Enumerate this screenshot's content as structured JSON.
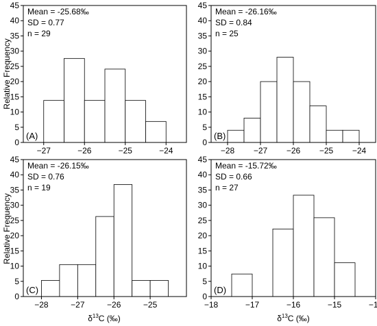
{
  "figure": {
    "ylabel": "Relative Frequency",
    "xlabel_prefix": "δ",
    "xlabel_sup": "13",
    "xlabel_suffix": "C (‰)"
  },
  "chart_data": [
    {
      "type": "bar",
      "panel": "(A)",
      "stats": [
        "Mean = -25.68‰",
        "SD = 0.77",
        "n = 29"
      ],
      "xlim": [
        -27.5,
        -23.5
      ],
      "xticks": [
        -27,
        -26,
        -25,
        -24
      ],
      "ylim": [
        0,
        45
      ],
      "yticks": [
        0,
        5,
        10,
        15,
        20,
        25,
        30,
        35,
        40,
        45
      ],
      "bin_width": 0.5,
      "bins": [
        {
          "start": -27.0,
          "value": 13.8
        },
        {
          "start": -26.5,
          "value": 27.6
        },
        {
          "start": -26.0,
          "value": 13.8
        },
        {
          "start": -25.5,
          "value": 24.1
        },
        {
          "start": -25.0,
          "value": 13.8
        },
        {
          "start": -24.5,
          "value": 6.9
        }
      ]
    },
    {
      "type": "bar",
      "panel": "(B)",
      "stats": [
        "Mean = -26.16‰",
        "SD = 0.84",
        "n = 25"
      ],
      "xlim": [
        -28.5,
        -23.5
      ],
      "xticks": [
        -28,
        -27,
        -26,
        -25,
        -24
      ],
      "ylim": [
        0,
        45
      ],
      "yticks": [
        0,
        5,
        10,
        15,
        20,
        25,
        30,
        35,
        40,
        45
      ],
      "bin_width": 0.5,
      "bins": [
        {
          "start": -28.0,
          "value": 4
        },
        {
          "start": -27.5,
          "value": 8
        },
        {
          "start": -27.0,
          "value": 20
        },
        {
          "start": -26.5,
          "value": 28
        },
        {
          "start": -26.0,
          "value": 20
        },
        {
          "start": -25.5,
          "value": 12
        },
        {
          "start": -25.0,
          "value": 4
        },
        {
          "start": -24.5,
          "value": 4
        }
      ]
    },
    {
      "type": "bar",
      "panel": "(C)",
      "stats": [
        "Mean = -26.15‰",
        "SD = 0.76",
        "n = 19"
      ],
      "xlim": [
        -28.5,
        -24
      ],
      "xticks": [
        -28,
        -27,
        -26,
        -25
      ],
      "ylim": [
        0,
        45
      ],
      "yticks": [
        0,
        5,
        10,
        15,
        20,
        25,
        30,
        35,
        40,
        45
      ],
      "bin_width": 0.5,
      "bins": [
        {
          "start": -28.0,
          "value": 5.3
        },
        {
          "start": -27.5,
          "value": 10.5
        },
        {
          "start": -27.0,
          "value": 10.5
        },
        {
          "start": -26.5,
          "value": 26.3
        },
        {
          "start": -26.0,
          "value": 36.8
        },
        {
          "start": -25.5,
          "value": 5.3
        },
        {
          "start": -25.0,
          "value": 5.3
        }
      ]
    },
    {
      "type": "bar",
      "panel": "(D)",
      "stats": [
        "Mean = -15.72‰",
        "SD = 0.66",
        "n = 27"
      ],
      "xlim": [
        -18,
        -14
      ],
      "xticks": [
        -18,
        -17,
        -16,
        -15,
        -14
      ],
      "ylim": [
        0,
        45
      ],
      "yticks": [
        0,
        5,
        10,
        15,
        20,
        25,
        30,
        35,
        40,
        45
      ],
      "bin_width": 0.5,
      "bins": [
        {
          "start": -17.5,
          "value": 7.4
        },
        {
          "start": -16.5,
          "value": 22.2
        },
        {
          "start": -16.0,
          "value": 33.3
        },
        {
          "start": -15.5,
          "value": 25.9
        },
        {
          "start": -15.0,
          "value": 11.1
        }
      ]
    }
  ]
}
